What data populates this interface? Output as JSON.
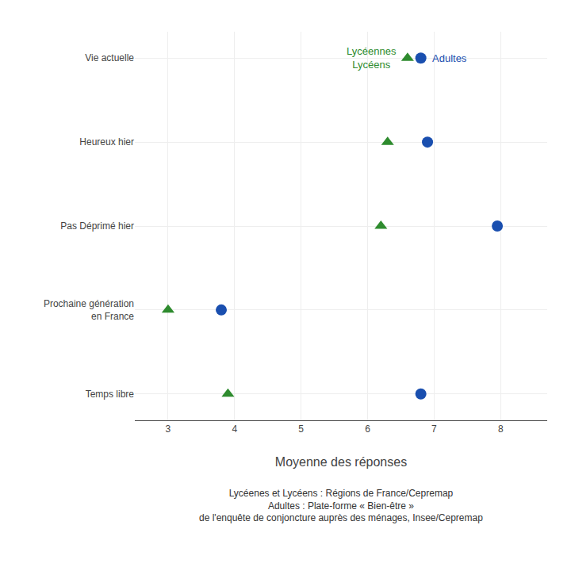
{
  "chart_data": {
    "type": "scatter",
    "orientation": "horizontal",
    "categories": [
      "Vie actuelle",
      "Heureux hier",
      "Pas Déprimé hier",
      "Prochaine génération\nen France",
      "Temps libre"
    ],
    "series": [
      {
        "name": "Lycéennes\nLycéens",
        "color": "#2e8b2e",
        "marker": "triangle",
        "values": [
          6.6,
          6.3,
          6.2,
          3.0,
          3.9
        ]
      },
      {
        "name": "Adultes",
        "color": "#1a4faf",
        "marker": "circle",
        "values": [
          6.8,
          6.9,
          7.95,
          3.8,
          6.8
        ]
      }
    ],
    "xlabel": "Moyenne des réponses",
    "xlim": [
      2.5,
      8.7
    ],
    "xticks": [
      3,
      4,
      5,
      6,
      7,
      8
    ],
    "grid": true,
    "annotations": [
      "Lycéenes et Lycéens : Régions de France/Cepremap\nAdultes : Plate-forme « Bien-être »\nde l'enquête de conjoncture auprès des ménages, Insee/Cepremap"
    ]
  }
}
